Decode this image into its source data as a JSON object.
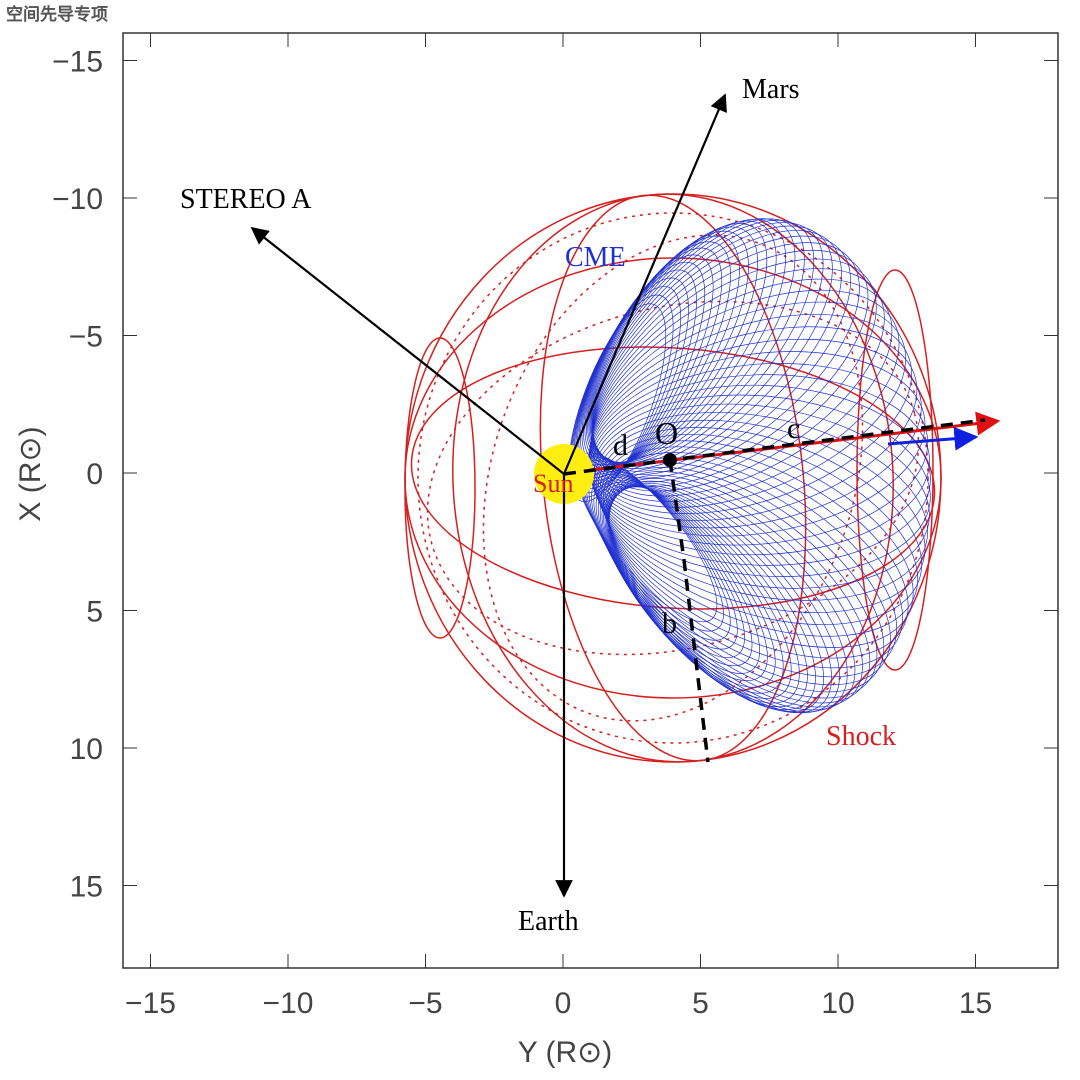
{
  "chart_data": {
    "type": "diagram",
    "watermark": "空间先导专项",
    "xlabel": "Y (R⊙)",
    "ylabel": "X (R⊙)",
    "xlim": [
      -16,
      18
    ],
    "ylim": [
      -16,
      18
    ],
    "y_inverted": true,
    "xticks": [
      {
        "value": -15,
        "label": "−15"
      },
      {
        "value": -10,
        "label": "−10"
      },
      {
        "value": -5,
        "label": "−5"
      },
      0,
      5,
      10,
      15
    ],
    "yticks": [
      {
        "value": -15,
        "label": "−15"
      },
      {
        "value": -10,
        "label": "−10"
      },
      {
        "value": -5,
        "label": "−5"
      },
      0,
      5,
      10,
      15
    ],
    "labels": {
      "mars": "Mars",
      "stereo": "STEREO A",
      "earth": "Earth",
      "cme": "CME",
      "shock": "Shock",
      "sun": "Sun",
      "o": "O",
      "b": "b",
      "c": "c",
      "d": "d"
    }
  }
}
